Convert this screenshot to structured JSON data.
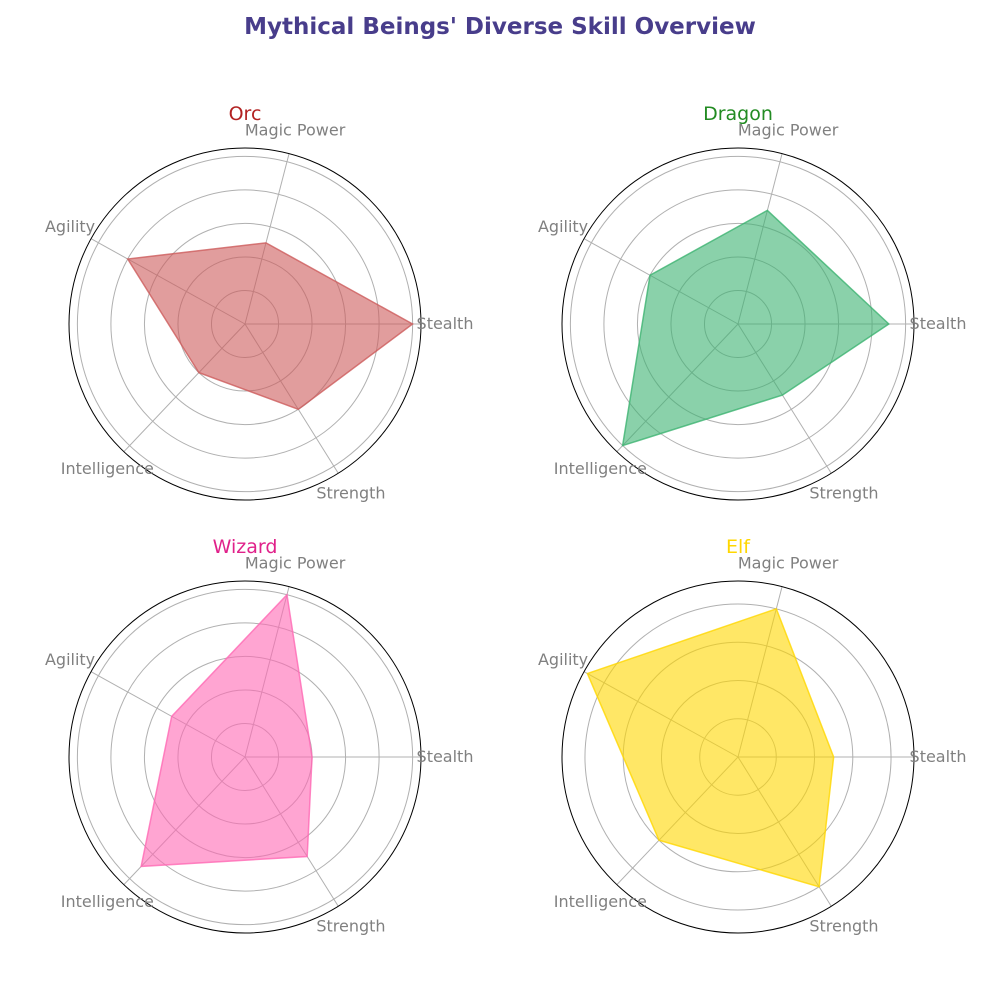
{
  "title": "Mythical Beings' Diverse Skill Overview",
  "chart_data": [
    {
      "type": "radar",
      "title": "Orc",
      "title_color": "#B22222",
      "fill_color": "#CD5C5C",
      "categories": [
        "Stealth",
        "Magic Power",
        "Agility",
        "Intelligence",
        "Strength"
      ],
      "values": [
        10,
        5,
        8,
        4,
        6
      ],
      "rlim": [
        0,
        10.5
      ],
      "grid": true
    },
    {
      "type": "radar",
      "title": "Dragon",
      "title_color": "#228B22",
      "fill_color": "#3CB371",
      "categories": [
        "Stealth",
        "Magic Power",
        "Agility",
        "Intelligence",
        "Strength"
      ],
      "values": [
        9,
        7,
        6,
        10,
        5
      ],
      "rlim": [
        0,
        10.5
      ],
      "grid": true
    },
    {
      "type": "radar",
      "title": "Wizard",
      "title_color": "#E0218A",
      "fill_color": "#FF69B4",
      "categories": [
        "Stealth",
        "Magic Power",
        "Agility",
        "Intelligence",
        "Strength"
      ],
      "values": [
        4,
        10,
        5,
        9,
        7
      ],
      "rlim": [
        0,
        10.5
      ],
      "grid": true
    },
    {
      "type": "radar",
      "title": "Elf",
      "title_color": "#FFD700",
      "fill_color": "#FFD700",
      "categories": [
        "Stealth",
        "Magic Power",
        "Agility",
        "Intelligence",
        "Strength"
      ],
      "values": [
        5,
        8,
        9,
        6,
        8
      ],
      "rlim": [
        0,
        9.2
      ],
      "grid": true
    }
  ]
}
